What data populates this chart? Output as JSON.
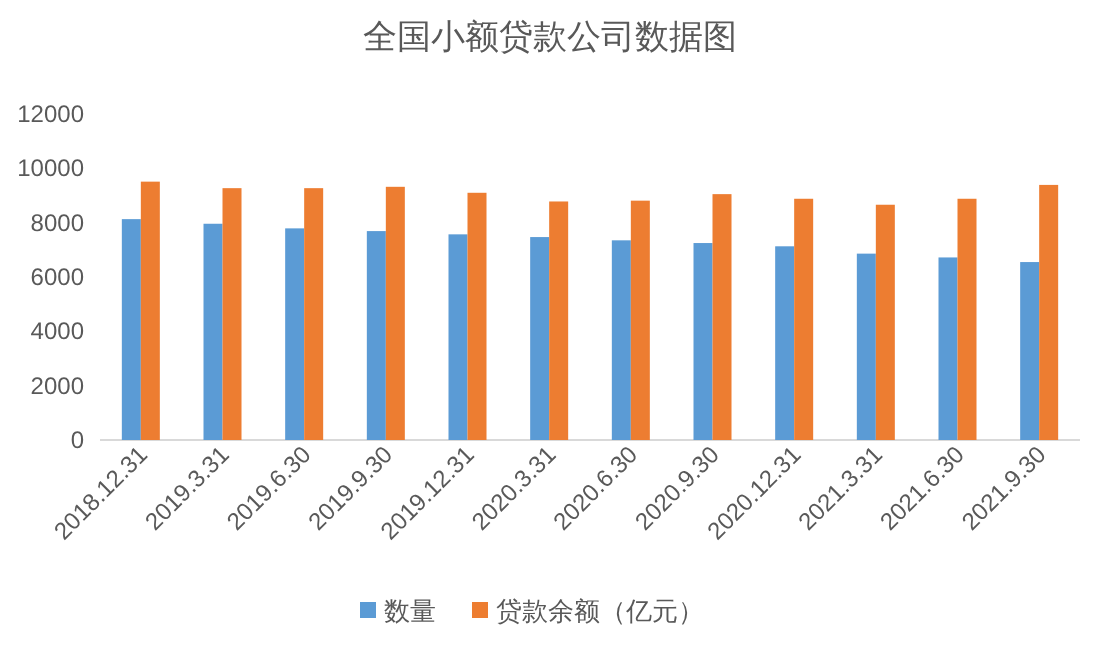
{
  "chart_data": {
    "type": "bar",
    "title": "全国小额贷款公司数据图",
    "categories": [
      "2018.12.31",
      "2019.3.31",
      "2019.6.30",
      "2019.9.30",
      "2019.12.31",
      "2020.3.31",
      "2020.6.30",
      "2020.9.30",
      "2020.12.31",
      "2021.3.31",
      "2021.6.30",
      "2021.9.30"
    ],
    "series": [
      {
        "name": "数量",
        "color": "#5b9bd5",
        "values": [
          8130,
          7960,
          7790,
          7690,
          7570,
          7470,
          7350,
          7250,
          7130,
          6860,
          6720,
          6550
        ]
      },
      {
        "name": "贷款余额（亿元）",
        "color": "#ed7d31",
        "values": [
          9510,
          9270,
          9270,
          9320,
          9100,
          8780,
          8810,
          9050,
          8880,
          8660,
          8880,
          9390
        ]
      }
    ],
    "ylim": [
      0,
      12000
    ],
    "yticks": [
      0,
      2000,
      4000,
      6000,
      8000,
      10000,
      12000
    ],
    "grid": false,
    "legend": "bottom"
  }
}
